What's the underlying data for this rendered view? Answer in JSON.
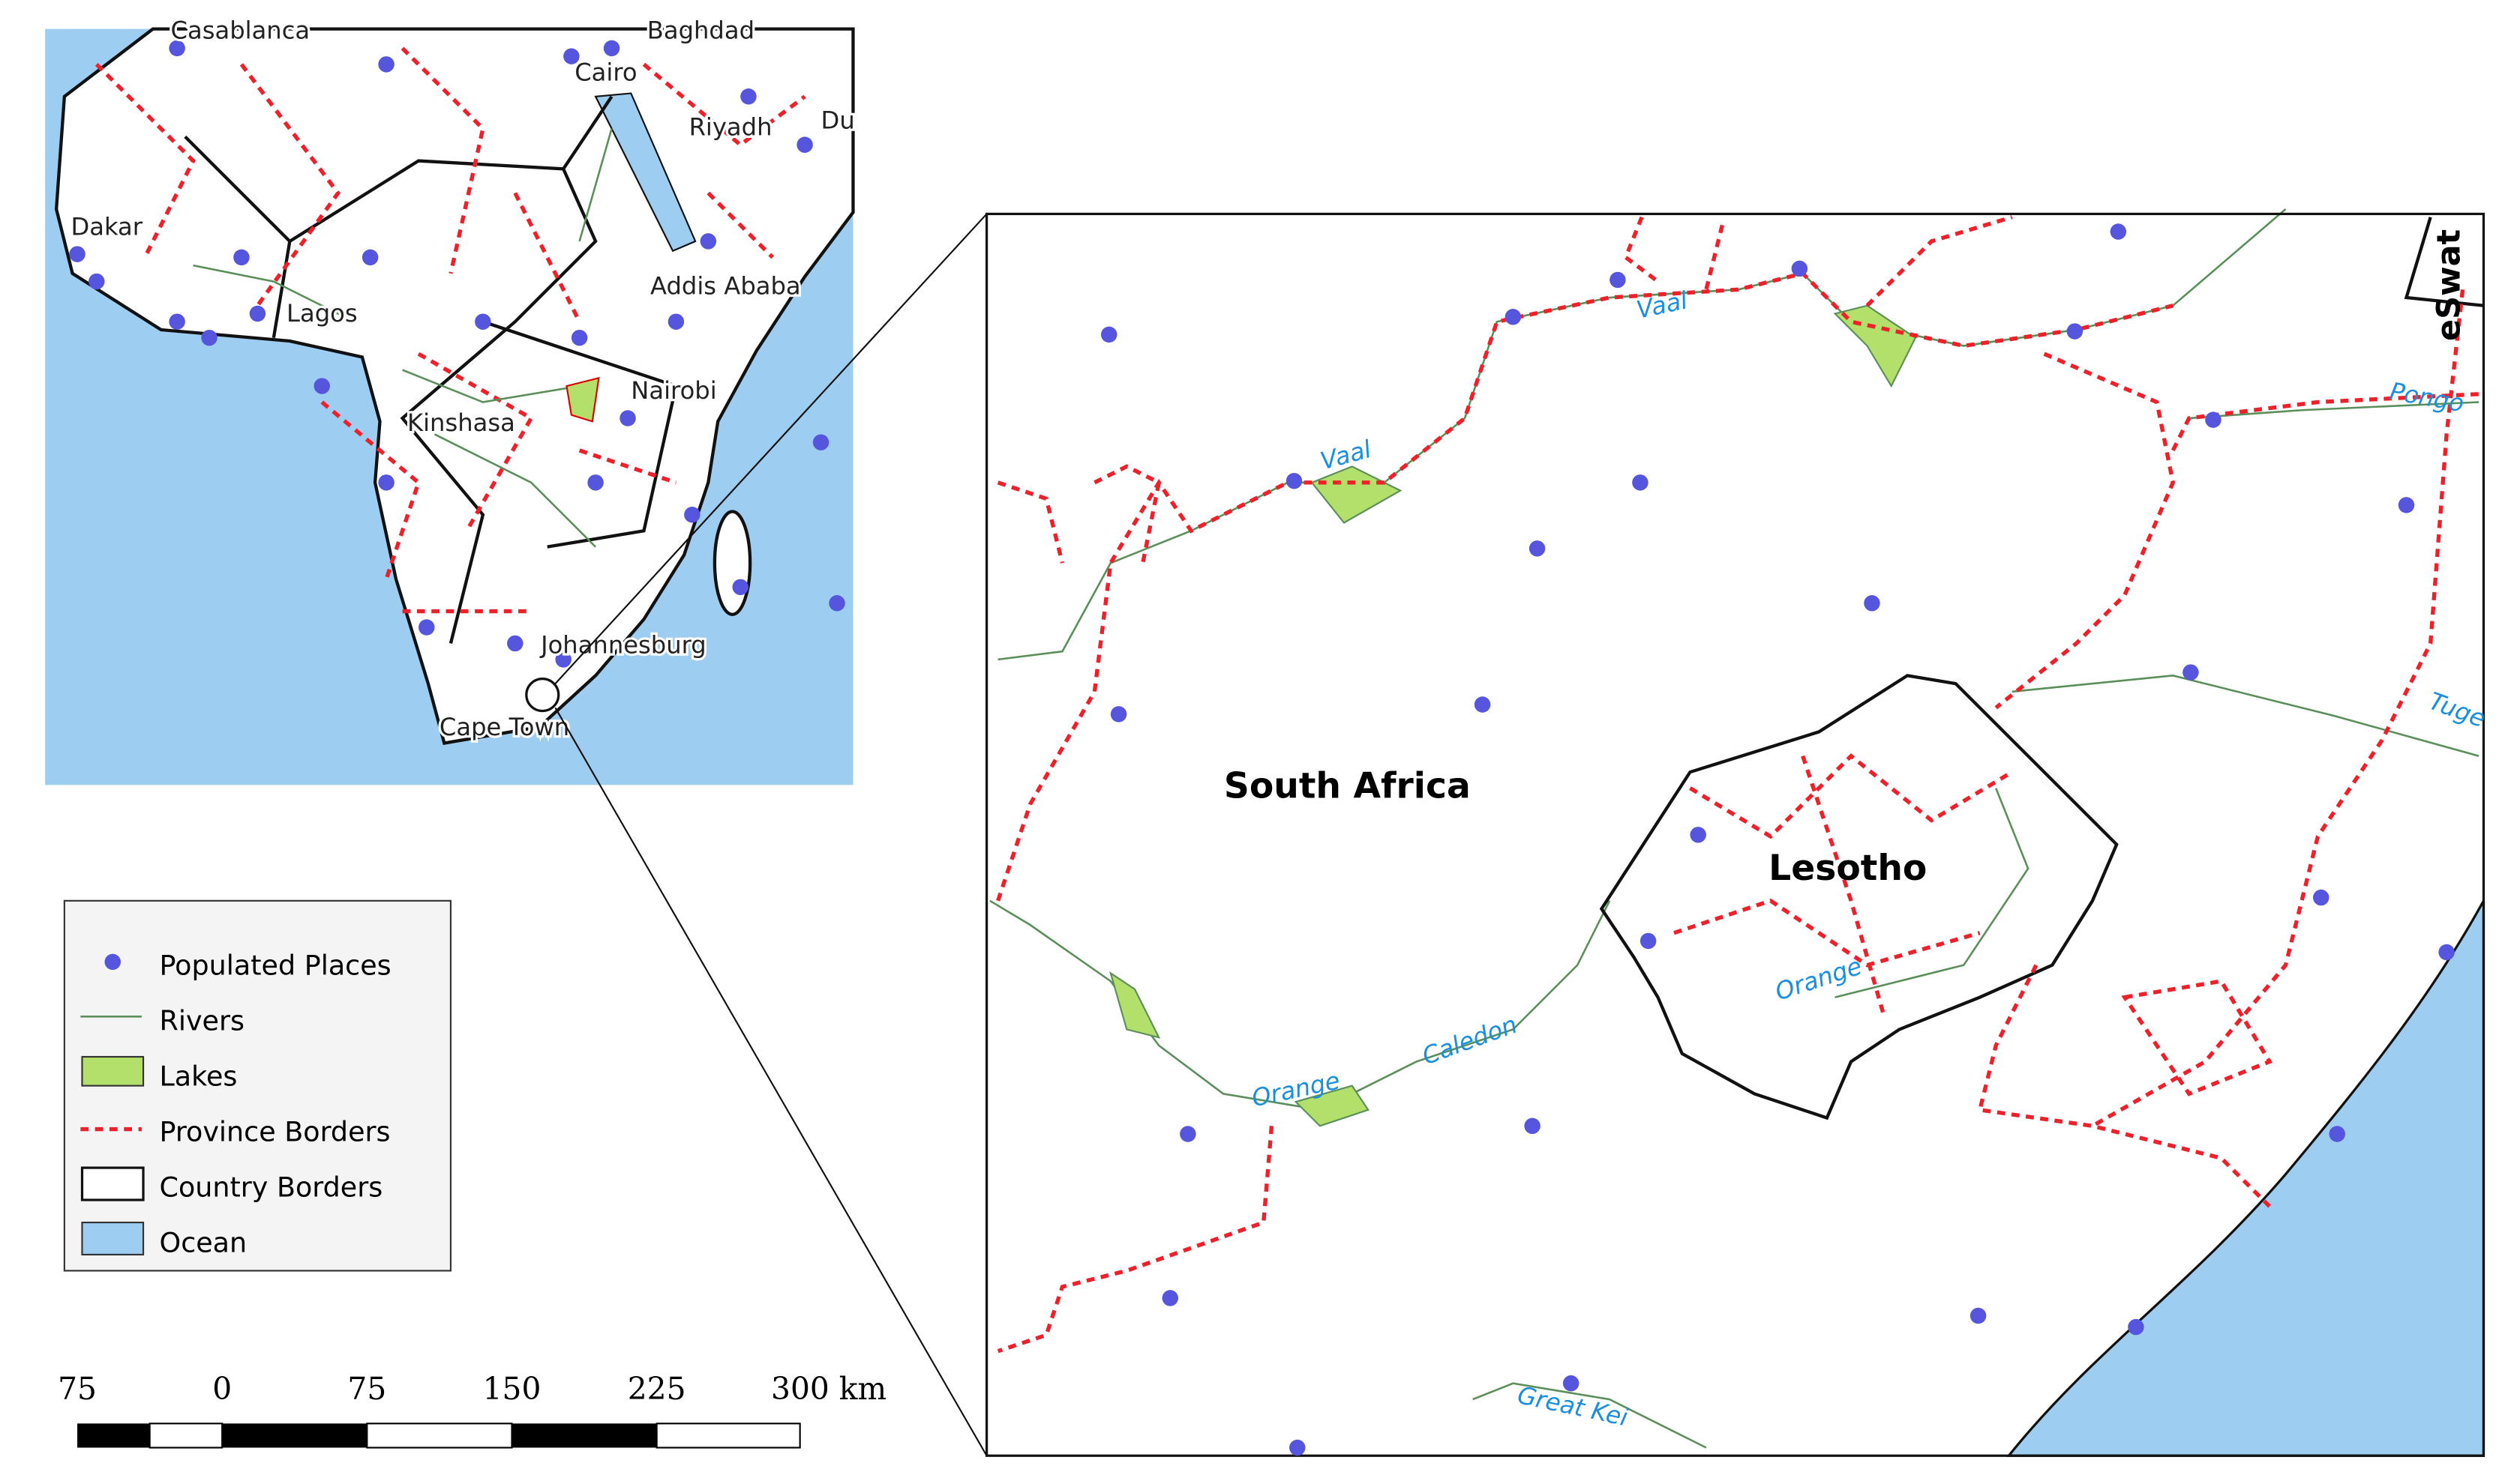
{
  "overview_map": {
    "city_labels": [
      "Casablanca",
      "Baghdad",
      "Cairo",
      "Riyadh",
      "Du",
      "Dakar",
      "Addis Ababa",
      "Lagos",
      "Nairobi",
      "Kinshasa",
      "Johannesburg",
      "Cape Town"
    ]
  },
  "detail_map": {
    "country_labels": [
      "South Africa",
      "Lesotho",
      "eSwat"
    ],
    "river_labels": [
      "Vaal",
      "Vaal",
      "Pongo",
      "Tuge",
      "Orange",
      "Caledon",
      "Orange",
      "Great Kei"
    ]
  },
  "legend": {
    "items": [
      "Populated Places",
      "Rivers",
      "Lakes",
      "Province Borders",
      "Country Borders",
      "Ocean"
    ]
  },
  "scale_bar": {
    "labels": [
      "75",
      "0",
      "75",
      "150",
      "225",
      "300 km"
    ]
  }
}
